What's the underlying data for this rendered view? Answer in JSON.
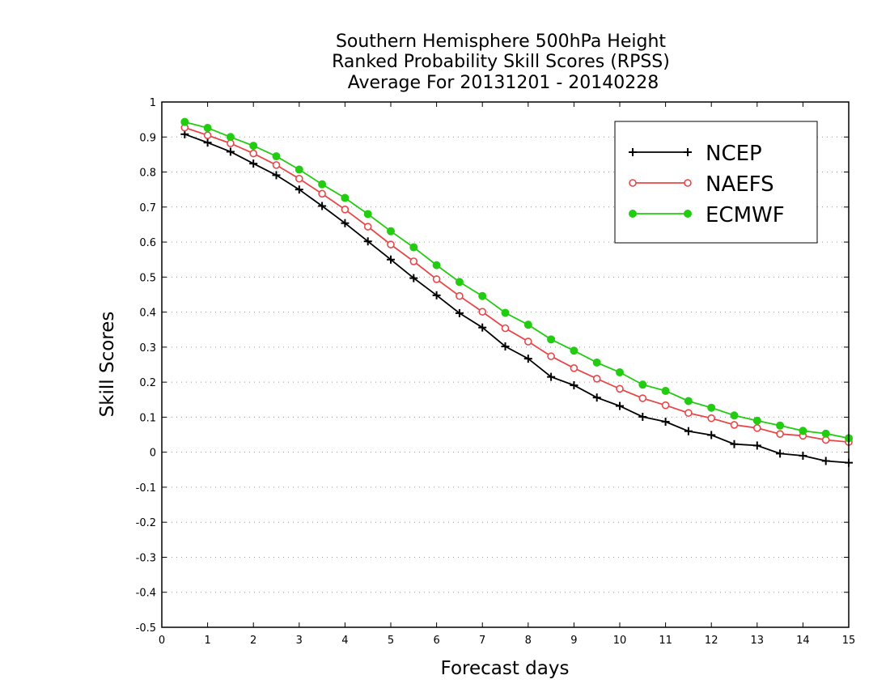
{
  "chart_data": {
    "type": "line",
    "title": [
      "Southern Hemisphere 500hPa Height",
      "Ranked Probability Skill Scores (RPSS)",
      "Average For 20131201 - 20140228"
    ],
    "xlabel": "Forecast days",
    "ylabel": "Skill Scores",
    "xlim": [
      0,
      15
    ],
    "ylim": [
      -0.5,
      1
    ],
    "xticks": [
      "0",
      "1",
      "2",
      "3",
      "4",
      "5",
      "6",
      "7",
      "8",
      "9",
      "10",
      "11",
      "12",
      "13",
      "14",
      "15"
    ],
    "yticks": [
      "1",
      "0.9",
      "0.8",
      "0.7",
      "0.6",
      "0.5",
      "0.4",
      "0.3",
      "0.2",
      "0.1",
      "0",
      "-0.1",
      "-0.2",
      "-0.3",
      "-0.4",
      "-0.5"
    ],
    "grid": "horizontal dotted",
    "legend_position": "top-right",
    "x": [
      0.5,
      1,
      1.5,
      2,
      2.5,
      3,
      3.5,
      4,
      4.5,
      5,
      5.5,
      6,
      6.5,
      7,
      7.5,
      8,
      8.5,
      9,
      9.5,
      10,
      10.5,
      11,
      11.5,
      12,
      12.5,
      13,
      13.5,
      14,
      14.5,
      15
    ],
    "series": [
      {
        "name": "NCEP",
        "color": "#000000",
        "marker": "plus",
        "values": [
          0.908,
          0.884,
          0.858,
          0.824,
          0.791,
          0.75,
          0.703,
          0.654,
          0.602,
          0.55,
          0.497,
          0.448,
          0.397,
          0.356,
          0.302,
          0.267,
          0.215,
          0.191,
          0.156,
          0.132,
          0.101,
          0.087,
          0.06,
          0.049,
          0.023,
          0.019,
          -0.004,
          -0.01,
          -0.025,
          -0.03
        ]
      },
      {
        "name": "NAEFS",
        "color": "#e8474a",
        "marker": "open-circle",
        "values": [
          0.927,
          0.905,
          0.882,
          0.853,
          0.82,
          0.781,
          0.738,
          0.693,
          0.644,
          0.593,
          0.545,
          0.494,
          0.446,
          0.401,
          0.354,
          0.316,
          0.274,
          0.24,
          0.21,
          0.181,
          0.154,
          0.134,
          0.112,
          0.097,
          0.078,
          0.069,
          0.052,
          0.047,
          0.035,
          0.029
        ]
      },
      {
        "name": "ECMWF",
        "color": "#22cc11",
        "marker": "filled-circle",
        "values": [
          0.943,
          0.926,
          0.9,
          0.875,
          0.845,
          0.807,
          0.765,
          0.726,
          0.68,
          0.631,
          0.585,
          0.534,
          0.486,
          0.446,
          0.398,
          0.364,
          0.322,
          0.29,
          0.256,
          0.228,
          0.193,
          0.175,
          0.146,
          0.127,
          0.105,
          0.09,
          0.076,
          0.061,
          0.053,
          0.04
        ]
      }
    ]
  }
}
